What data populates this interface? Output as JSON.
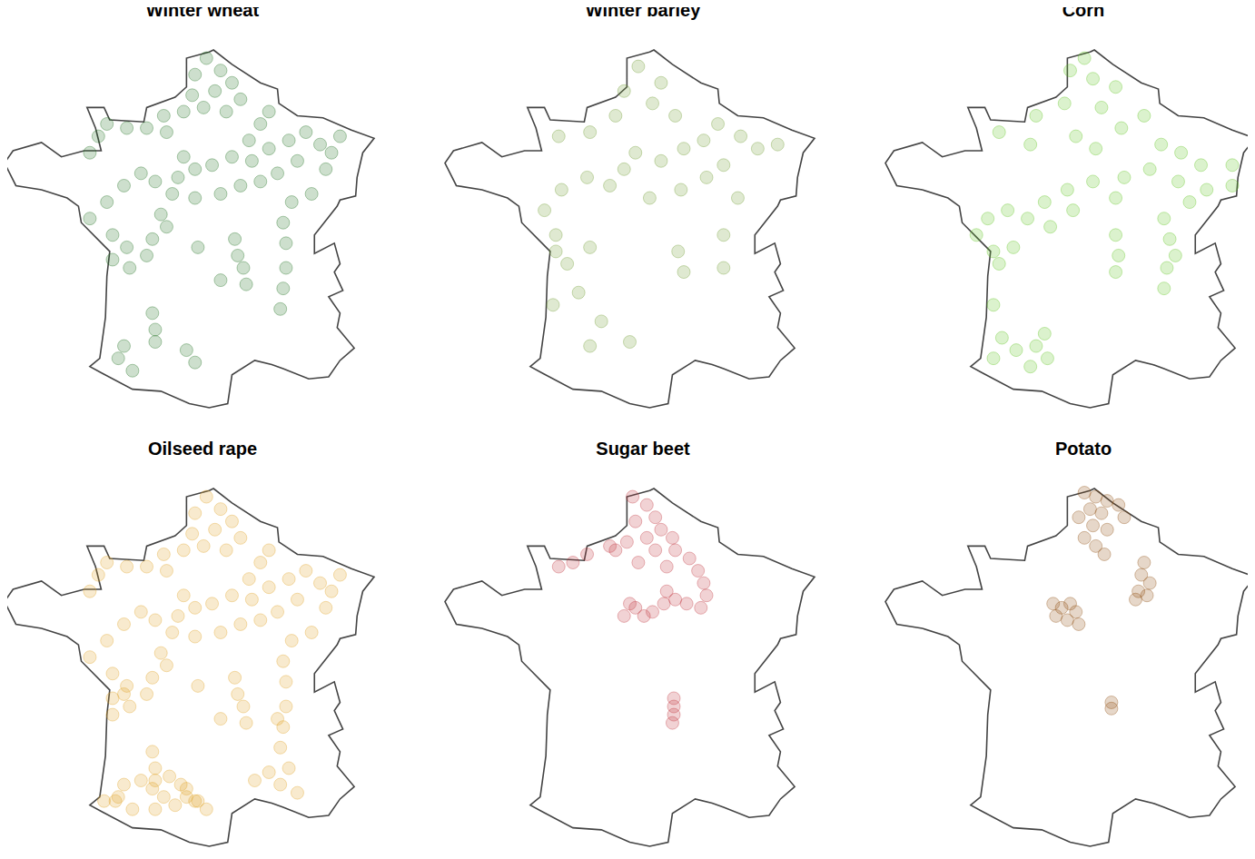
{
  "map_outline": {
    "color": "#444444",
    "x": [
      2.4,
      2.55,
      3.2,
      4.2,
      4.8,
      4.85,
      5.5,
      6.4,
      7.4,
      8.2,
      7.8,
      7.6,
      7.55,
      7.0,
      6.9,
      6.1,
      6.1,
      6.8,
      7.0,
      6.8,
      7.1,
      6.6,
      7.0,
      6.9,
      7.5,
      7.0,
      6.6,
      5.9,
      5.0,
      4.6,
      4.0,
      3.2,
      3.05,
      2.4,
      1.7,
      0.7,
      -0.3,
      -1.4,
      -1.8,
      -1.45,
      -1.25,
      -1.2,
      -1.1,
      -2.1,
      -2.2,
      -2.6,
      -3.5,
      -4.4,
      -4.8,
      -4.5,
      -3.5,
      -2.8,
      -2.0,
      -1.4,
      -1.6,
      -1.9,
      -1.3,
      -1.1,
      0.1,
      0.2,
      1.2,
      1.6,
      1.6,
      2.4
    ],
    "y": [
      51.05,
      51.1,
      50.75,
      50.3,
      50.15,
      49.8,
      49.5,
      49.45,
      49.15,
      48.95,
      48.6,
      48.0,
      47.55,
      47.45,
      47.3,
      46.6,
      46.15,
      46.4,
      45.9,
      45.7,
      45.25,
      45.1,
      44.7,
      44.35,
      43.85,
      43.55,
      43.15,
      43.1,
      43.35,
      43.45,
      43.55,
      43.2,
      42.5,
      42.4,
      42.5,
      42.8,
      42.85,
      43.25,
      43.4,
      43.6,
      44.6,
      45.6,
      46.2,
      46.9,
      47.3,
      47.5,
      47.7,
      47.8,
      48.35,
      48.65,
      48.85,
      48.5,
      48.65,
      48.65,
      49.2,
      49.7,
      49.7,
      49.4,
      49.35,
      49.7,
      49.95,
      50.2,
      50.9,
      51.05
    ]
  },
  "chart_data": [
    {
      "type": "scatter",
      "title": "Winter wheat",
      "color": "#1b6e1b",
      "marker": "circle",
      "tick_labels": false,
      "x": [
        2.3,
        2.8,
        3.2,
        1.9,
        2.6,
        1.8,
        3.5,
        2.2,
        3.0,
        1.5,
        0.8,
        0.2,
        -0.5,
        -1.2,
        -1.5,
        -1.8,
        0.9,
        1.5,
        1.9,
        1.3,
        2.5,
        3.2,
        3.8,
        4.2,
        4.5,
        3.9,
        4.5,
        5.2,
        5.8,
        6.3,
        6.7,
        7.0,
        5.5,
        4.8,
        4.2,
        3.5,
        2.8,
        1.9,
        1.1,
        0.5,
        0.0,
        -0.6,
        -1.2,
        0.7,
        5.3,
        6.0,
        6.5,
        -1.8,
        -1.0,
        -0.5,
        -1.0,
        -0.4,
        0.2,
        0.4,
        0.9,
        3.3,
        3.4,
        3.6,
        3.7,
        5.0,
        5.1,
        5.1,
        5.0,
        4.9,
        0.4,
        0.5,
        0.5,
        -0.8,
        -0.3,
        -0.6,
        1.6,
        1.9,
        2.8,
        2.0
      ],
      "y": [
        50.9,
        50.6,
        50.3,
        50.5,
        50.1,
        50.0,
        49.9,
        49.7,
        49.6,
        49.6,
        49.5,
        49.2,
        49.2,
        49.3,
        49.0,
        48.6,
        49.1,
        48.5,
        48.2,
        48.0,
        48.3,
        48.5,
        48.9,
        49.3,
        49.6,
        48.4,
        48.7,
        48.9,
        49.1,
        48.8,
        48.6,
        49.0,
        48.4,
        48.1,
        47.9,
        47.8,
        47.6,
        47.5,
        47.6,
        47.9,
        48.1,
        47.8,
        47.4,
        47.1,
        47.4,
        47.6,
        48.2,
        47.0,
        46.6,
        46.3,
        46.0,
        45.8,
        46.1,
        46.5,
        46.8,
        46.5,
        46.1,
        45.8,
        45.4,
        46.9,
        46.4,
        45.8,
        45.3,
        44.8,
        44.7,
        44.3,
        44.0,
        43.6,
        43.3,
        43.9,
        43.8,
        43.5,
        45.5,
        46.3
      ]
    },
    {
      "type": "scatter",
      "title": "Winter barley",
      "color": "#6e9a2e",
      "marker": "circle",
      "tick_labels": false,
      "x": [
        2.0,
        2.8,
        1.5,
        2.5,
        3.3,
        1.2,
        0.3,
        -0.8,
        1.9,
        1.5,
        2.8,
        3.6,
        4.3,
        4.8,
        5.6,
        6.2,
        6.9,
        5.0,
        4.4,
        3.5,
        2.4,
        1.0,
        0.2,
        -0.7,
        -1.3,
        5.5,
        -0.9,
        -0.9,
        -0.5,
        0.3,
        3.4,
        3.6,
        5.0,
        5.0,
        -0.1,
        0.7,
        1.7,
        -1.0,
        0.3
      ],
      "y": [
        50.7,
        50.3,
        50.1,
        49.8,
        49.5,
        49.5,
        49.1,
        49.0,
        48.6,
        48.2,
        48.4,
        48.7,
        48.9,
        49.3,
        49.0,
        48.7,
        48.8,
        48.3,
        48.0,
        47.7,
        47.5,
        47.8,
        48.0,
        47.7,
        47.2,
        47.5,
        46.6,
        46.2,
        45.9,
        46.3,
        46.2,
        45.7,
        46.6,
        45.8,
        45.2,
        44.5,
        44.0,
        44.9,
        43.9
      ]
    },
    {
      "type": "scatter",
      "title": "Corn",
      "color": "#5cc21a",
      "marker": "circle",
      "tick_labels": false,
      "x": [
        1.7,
        2.5,
        2.2,
        3.3,
        1.5,
        0.5,
        2.8,
        -0.8,
        0.3,
        1.9,
        2.6,
        3.5,
        4.3,
        4.9,
        5.6,
        6.3,
        7.4,
        7.4,
        6.5,
        5.9,
        5.5,
        4.5,
        3.6,
        2.5,
        1.6,
        0.8,
        0.2,
        -0.5,
        -1.2,
        -1.6,
        -1.0,
        -0.8,
        -0.3,
        1.0,
        1.8,
        3.3,
        3.3,
        3.4,
        3.3,
        5.0,
        5.2,
        5.4,
        5.1,
        5.0,
        -1.0,
        -0.7,
        -0.2,
        -1.0,
        0.5,
        0.9,
        0.3,
        0.8
      ],
      "y": [
        50.6,
        50.4,
        50.9,
        50.2,
        49.8,
        49.5,
        49.7,
        49.1,
        48.8,
        49.0,
        48.7,
        49.2,
        49.5,
        48.8,
        48.6,
        48.3,
        48.3,
        47.8,
        47.7,
        47.4,
        47.9,
        48.2,
        48.0,
        47.9,
        47.7,
        47.4,
        47.0,
        47.2,
        47.0,
        46.6,
        46.2,
        45.9,
        46.3,
        46.8,
        47.2,
        47.5,
        46.6,
        46.1,
        45.7,
        47.0,
        46.5,
        46.1,
        45.8,
        45.3,
        44.9,
        44.1,
        43.8,
        43.6,
        43.9,
        43.6,
        43.4,
        44.2
      ]
    },
    {
      "type": "scatter",
      "title": "Oilseed rape",
      "color": "#e0a020",
      "marker": "circle",
      "tick_labels": false,
      "x": [
        2.3,
        2.8,
        3.2,
        1.9,
        2.6,
        1.8,
        3.5,
        2.2,
        3.0,
        1.5,
        0.8,
        0.2,
        -0.5,
        -1.2,
        -1.5,
        -1.8,
        0.9,
        1.5,
        1.9,
        1.3,
        2.5,
        3.2,
        3.8,
        4.2,
        4.5,
        3.9,
        4.5,
        5.2,
        5.8,
        6.3,
        6.7,
        7.0,
        5.5,
        4.8,
        4.2,
        3.5,
        2.8,
        1.9,
        1.1,
        0.5,
        0.0,
        -0.6,
        -1.2,
        0.7,
        5.3,
        6.0,
        6.5,
        -1.8,
        -1.0,
        -0.5,
        -1.0,
        -0.4,
        0.2,
        0.4,
        0.9,
        3.3,
        3.4,
        3.6,
        3.7,
        5.0,
        5.1,
        5.1,
        5.0,
        4.9,
        0.4,
        0.5,
        0.5,
        -0.8,
        -0.3,
        -0.6,
        1.6,
        1.9,
        2.8,
        2.0,
        0.0,
        0.4,
        0.8,
        1.2,
        1.6,
        2.0,
        1.0,
        0.5,
        1.4,
        2.3,
        -1.3,
        -0.9,
        4.0,
        4.5,
        4.9,
        5.2,
        5.5,
        4.8,
        -1.0,
        -0.6
      ],
      "y": [
        50.9,
        50.6,
        50.3,
        50.5,
        50.1,
        50.0,
        49.9,
        49.7,
        49.6,
        49.6,
        49.5,
        49.2,
        49.2,
        49.3,
        49.0,
        48.6,
        49.1,
        48.5,
        48.2,
        48.0,
        48.3,
        48.5,
        48.9,
        49.3,
        49.6,
        48.4,
        48.7,
        48.9,
        49.1,
        48.8,
        48.6,
        49.0,
        48.4,
        48.1,
        47.9,
        47.8,
        47.6,
        47.5,
        47.6,
        47.9,
        48.1,
        47.8,
        47.4,
        47.1,
        47.4,
        47.6,
        48.2,
        47.0,
        46.6,
        46.3,
        46.0,
        45.8,
        46.1,
        46.5,
        46.8,
        46.5,
        46.1,
        45.8,
        45.4,
        46.9,
        46.4,
        45.8,
        45.3,
        44.8,
        44.7,
        44.3,
        44.0,
        43.6,
        43.3,
        43.9,
        43.8,
        43.5,
        45.5,
        46.3,
        44.0,
        43.8,
        43.6,
        43.4,
        43.6,
        43.5,
        44.1,
        43.3,
        43.9,
        43.3,
        43.5,
        43.5,
        44.0,
        44.2,
        43.9,
        44.3,
        43.7,
        45.5,
        45.6,
        46.1
      ]
    },
    {
      "type": "scatter",
      "title": "Sugar beet",
      "color": "#c0303a",
      "marker": "circle",
      "tick_labels": false,
      "x": [
        1.8,
        2.3,
        2.6,
        1.9,
        2.8,
        3.2,
        2.3,
        1.6,
        1.2,
        1.0,
        -0.3,
        -0.8,
        0.2,
        2.6,
        3.3,
        3.8,
        4.1,
        4.3,
        4.4,
        4.2,
        3.7,
        3.3,
        2.9,
        2.5,
        1.9,
        1.5,
        1.7,
        2.2,
        3.0,
        2.0,
        3.0,
        3.25,
        3.25,
        3.25,
        3.2
      ],
      "y": [
        50.9,
        50.7,
        50.4,
        50.3,
        50.1,
        49.9,
        49.9,
        49.8,
        49.6,
        49.7,
        49.3,
        49.2,
        49.5,
        49.6,
        49.6,
        49.4,
        49.1,
        48.8,
        48.5,
        48.2,
        48.3,
        48.4,
        48.3,
        48.1,
        48.2,
        48.0,
        48.3,
        48.0,
        49.2,
        49.3,
        48.6,
        46.0,
        45.8,
        45.6,
        45.4
      ]
    },
    {
      "type": "scatter",
      "title": "Potato",
      "color": "#8b4a0b",
      "marker": "circle",
      "tick_labels": false,
      "x": [
        2.2,
        2.6,
        3.0,
        3.4,
        2.4,
        2.8,
        3.6,
        2.0,
        2.5,
        3.0,
        2.2,
        2.6,
        2.9,
        4.3,
        4.2,
        4.5,
        4.1,
        4.4,
        4.0,
        1.1,
        1.4,
        1.7,
        1.2,
        1.6,
        2.0,
        1.9,
        3.15,
        3.15
      ],
      "y": [
        51.0,
        50.9,
        50.8,
        50.7,
        50.6,
        50.5,
        50.4,
        50.4,
        50.2,
        50.1,
        49.9,
        49.7,
        49.5,
        49.3,
        49.0,
        48.8,
        48.6,
        48.5,
        48.4,
        48.3,
        48.2,
        48.3,
        48.0,
        47.9,
        47.8,
        48.1,
        45.9,
        45.75
      ]
    }
  ]
}
